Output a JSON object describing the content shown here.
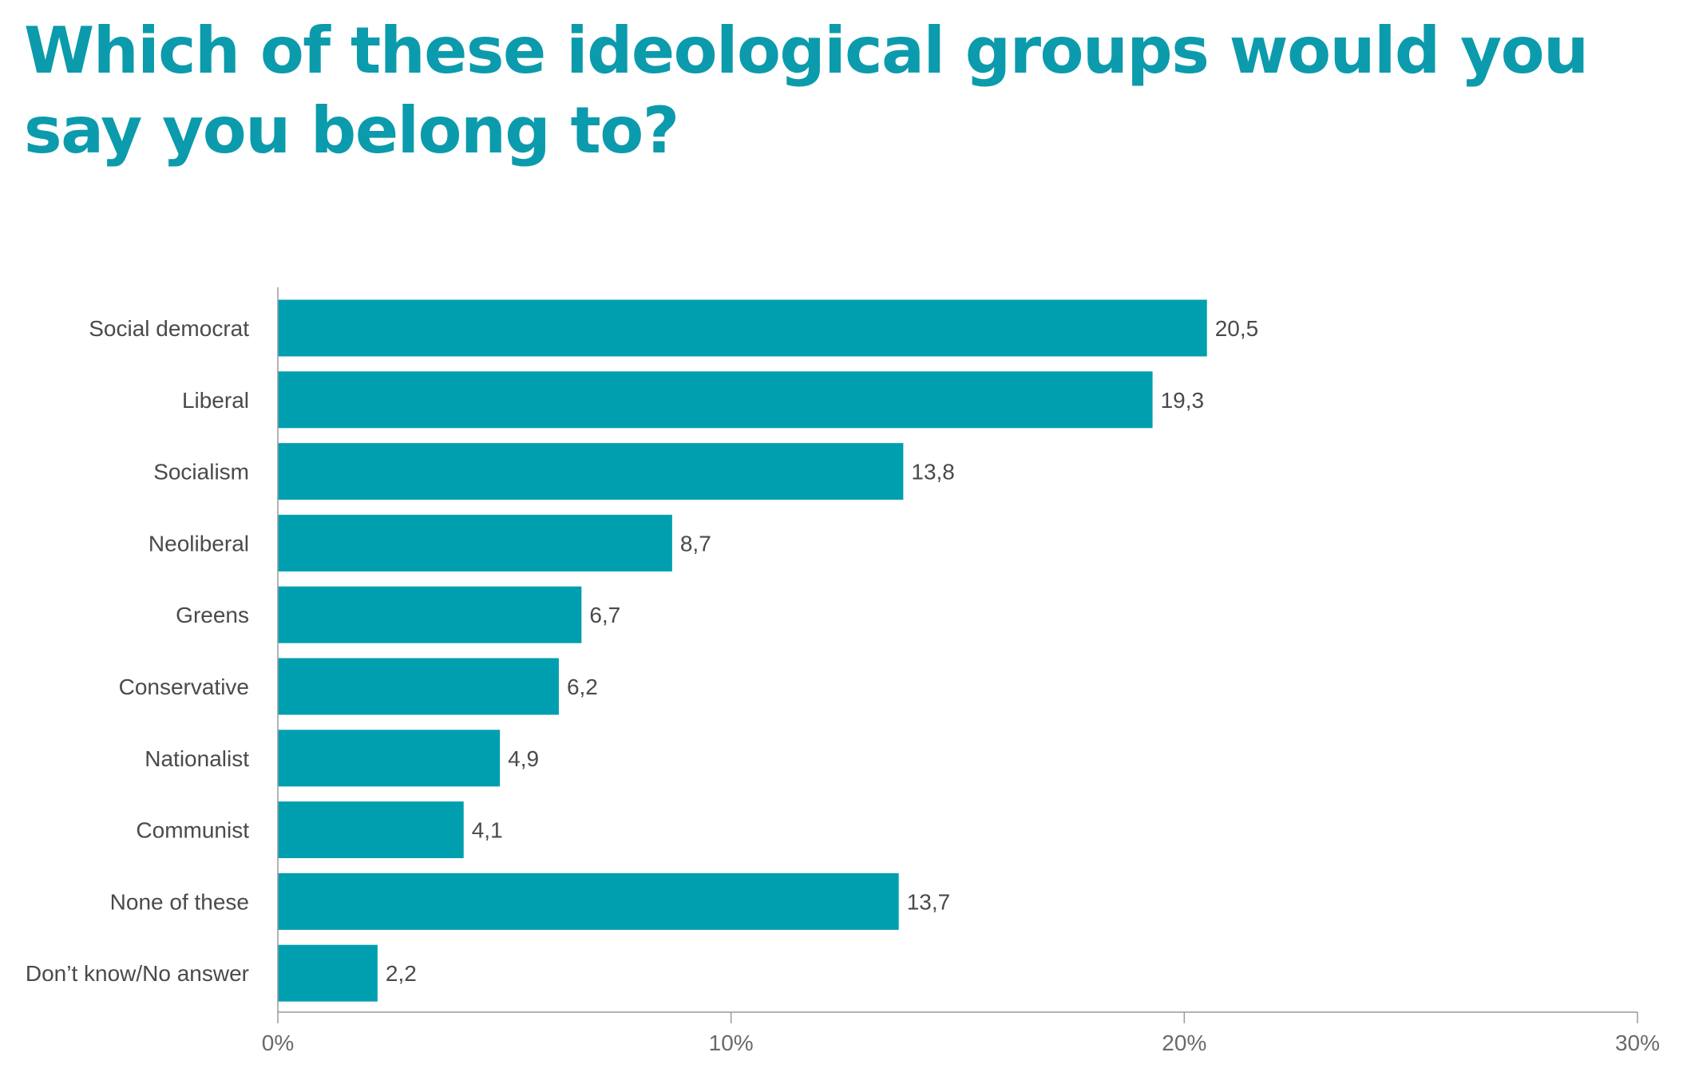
{
  "chart_data": {
    "type": "bar",
    "orientation": "horizontal",
    "title": "Which of these ideological groups would you say you belong to?",
    "categories": [
      "Social democrat",
      "Liberal",
      "Socialism",
      "Neoliberal",
      "Greens",
      "Conservative",
      "Nationalist",
      "Communist",
      "None of these",
      "Don’t know/No answer"
    ],
    "values": [
      20.5,
      19.3,
      13.8,
      8.7,
      6.7,
      6.2,
      4.9,
      4.1,
      13.7,
      2.2
    ],
    "value_labels": [
      "20,5",
      "19,3",
      "13,8",
      "8,7",
      "6,7",
      "6,2",
      "4,9",
      "4,1",
      "13,7",
      "2,2"
    ],
    "xlim": [
      0,
      30
    ],
    "xticks": [
      0,
      10,
      20,
      30
    ],
    "xtick_labels": [
      "0%",
      "10%",
      "20%",
      "30%"
    ],
    "grid": false,
    "legend": "none",
    "colors": {
      "bar": "#009fb0",
      "title": "#0b9bac",
      "axis": "#9a9a9a",
      "text": "#4a4a4a"
    }
  }
}
